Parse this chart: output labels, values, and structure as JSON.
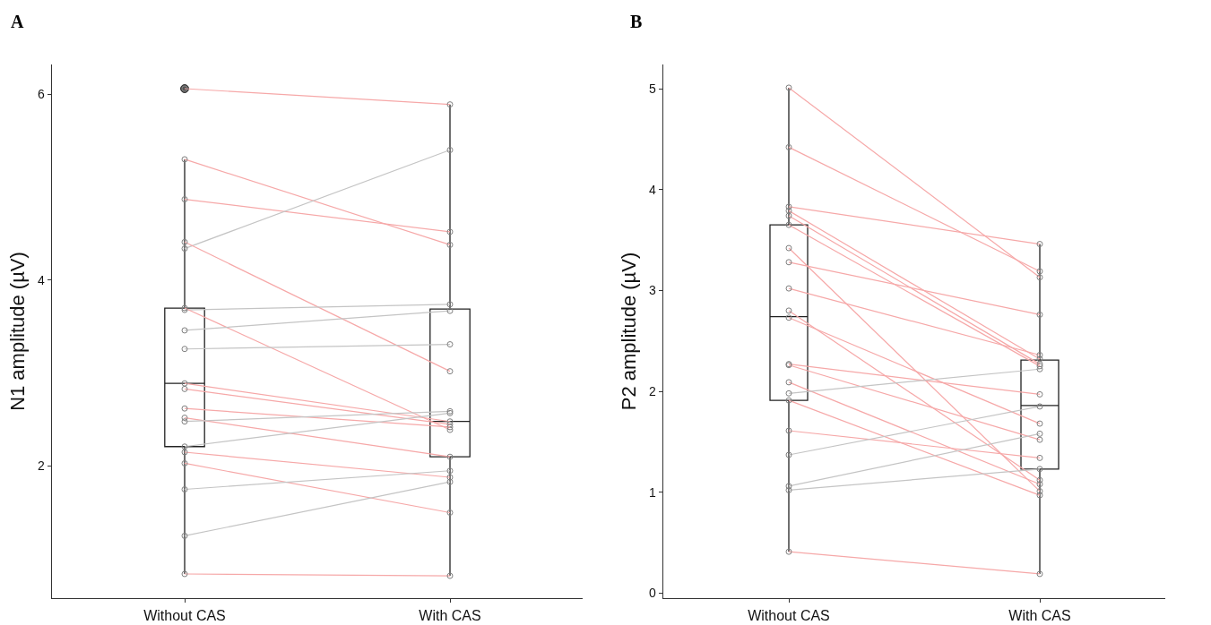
{
  "chart_data": [
    {
      "type": "box",
      "title": "A",
      "ylabel": "N1 amplitude (µV)",
      "categories": [
        "Without CAS",
        "With CAS"
      ],
      "ylim": [
        0.58,
        6.32
      ],
      "yticks": [
        2,
        4,
        6
      ],
      "grid": false,
      "marker": "circle",
      "line_style": "solid",
      "boxes": [
        {
          "low": 0.84,
          "q1": 2.21,
          "median": 2.89,
          "q3": 3.7,
          "high": 5.3,
          "outliers": [
            6.06
          ]
        },
        {
          "low": 0.82,
          "q1": 2.1,
          "median": 2.48,
          "q3": 3.69,
          "high": 5.89
        }
      ],
      "series": [
        {
          "type": "line",
          "color": "#f6a8a8",
          "values": [
            6.06,
            5.89
          ]
        },
        {
          "type": "line",
          "color": "#f6a8a8",
          "values": [
            5.3,
            4.38
          ]
        },
        {
          "type": "line",
          "color": "#f6a8a8",
          "values": [
            4.87,
            4.52
          ]
        },
        {
          "type": "line",
          "color": "#c4c4c4",
          "values": [
            4.34,
            5.4
          ]
        },
        {
          "type": "line",
          "color": "#f6a8a8",
          "values": [
            4.41,
            3.02
          ]
        },
        {
          "type": "line",
          "color": "#c4c4c4",
          "values": [
            3.68,
            3.74
          ]
        },
        {
          "type": "line",
          "color": "#f6a8a8",
          "values": [
            3.7,
            2.39
          ]
        },
        {
          "type": "line",
          "color": "#c4c4c4",
          "values": [
            3.46,
            3.67
          ]
        },
        {
          "type": "line",
          "color": "#c4c4c4",
          "values": [
            3.26,
            3.31
          ]
        },
        {
          "type": "line",
          "color": "#f6a8a8",
          "values": [
            2.89,
            2.48
          ]
        },
        {
          "type": "line",
          "color": "#f6a8a8",
          "values": [
            2.83,
            2.45
          ]
        },
        {
          "type": "line",
          "color": "#f6a8a8",
          "values": [
            2.62,
            2.42
          ]
        },
        {
          "type": "line",
          "color": "#f6a8a8",
          "values": [
            2.52,
            2.1
          ]
        },
        {
          "type": "line",
          "color": "#c4c4c4",
          "values": [
            2.48,
            2.59
          ]
        },
        {
          "type": "line",
          "color": "#c4c4c4",
          "values": [
            2.21,
            2.57
          ]
        },
        {
          "type": "line",
          "color": "#f6a8a8",
          "values": [
            2.15,
            1.88
          ]
        },
        {
          "type": "line",
          "color": "#f6a8a8",
          "values": [
            2.03,
            1.5
          ]
        },
        {
          "type": "line",
          "color": "#c4c4c4",
          "values": [
            1.75,
            1.95
          ]
        },
        {
          "type": "line",
          "color": "#c4c4c4",
          "values": [
            1.25,
            1.83
          ]
        },
        {
          "type": "line",
          "color": "#f6a8a8",
          "values": [
            0.84,
            0.82
          ]
        }
      ]
    },
    {
      "type": "box",
      "title": "B",
      "ylabel": "P2 amplitude (µV)",
      "categories": [
        "Without CAS",
        "With CAS"
      ],
      "ylim": [
        -0.05,
        5.24
      ],
      "yticks": [
        0,
        1,
        2,
        3,
        4,
        5
      ],
      "grid": false,
      "marker": "circle",
      "line_style": "solid",
      "boxes": [
        {
          "low": 0.41,
          "q1": 1.91,
          "median": 2.74,
          "q3": 3.65,
          "high": 5.01
        },
        {
          "low": 0.19,
          "q1": 1.23,
          "median": 1.86,
          "q3": 2.31,
          "high": 3.46
        }
      ],
      "series": [
        {
          "type": "line",
          "color": "#f6a8a8",
          "values": [
            5.01,
            3.13
          ]
        },
        {
          "type": "line",
          "color": "#f6a8a8",
          "values": [
            4.42,
            3.19
          ]
        },
        {
          "type": "line",
          "color": "#f6a8a8",
          "values": [
            3.83,
            3.46
          ]
        },
        {
          "type": "line",
          "color": "#f6a8a8",
          "values": [
            3.79,
            2.32
          ]
        },
        {
          "type": "line",
          "color": "#f6a8a8",
          "values": [
            3.74,
            2.27
          ]
        },
        {
          "type": "line",
          "color": "#f6a8a8",
          "values": [
            3.65,
            2.25
          ]
        },
        {
          "type": "line",
          "color": "#f6a8a8",
          "values": [
            3.42,
            1.01
          ]
        },
        {
          "type": "line",
          "color": "#f6a8a8",
          "values": [
            3.28,
            2.76
          ]
        },
        {
          "type": "line",
          "color": "#f6a8a8",
          "values": [
            3.02,
            2.36
          ]
        },
        {
          "type": "line",
          "color": "#f6a8a8",
          "values": [
            2.8,
            1.12
          ]
        },
        {
          "type": "line",
          "color": "#f6a8a8",
          "values": [
            2.73,
            1.68
          ]
        },
        {
          "type": "line",
          "color": "#f6a8a8",
          "values": [
            2.27,
            1.97
          ]
        },
        {
          "type": "line",
          "color": "#f6a8a8",
          "values": [
            2.26,
            1.52
          ]
        },
        {
          "type": "line",
          "color": "#f6a8a8",
          "values": [
            2.09,
            1.08
          ]
        },
        {
          "type": "line",
          "color": "#c4c4c4",
          "values": [
            1.98,
            2.22
          ]
        },
        {
          "type": "line",
          "color": "#f6a8a8",
          "values": [
            1.91,
            0.97
          ]
        },
        {
          "type": "line",
          "color": "#f6a8a8",
          "values": [
            1.61,
            1.34
          ]
        },
        {
          "type": "line",
          "color": "#c4c4c4",
          "values": [
            1.37,
            1.85
          ]
        },
        {
          "type": "line",
          "color": "#c4c4c4",
          "values": [
            1.06,
            1.58
          ]
        },
        {
          "type": "line",
          "color": "#c4c4c4",
          "values": [
            1.02,
            1.23
          ]
        },
        {
          "type": "line",
          "color": "#f6a8a8",
          "values": [
            0.41,
            0.19
          ]
        }
      ]
    }
  ]
}
